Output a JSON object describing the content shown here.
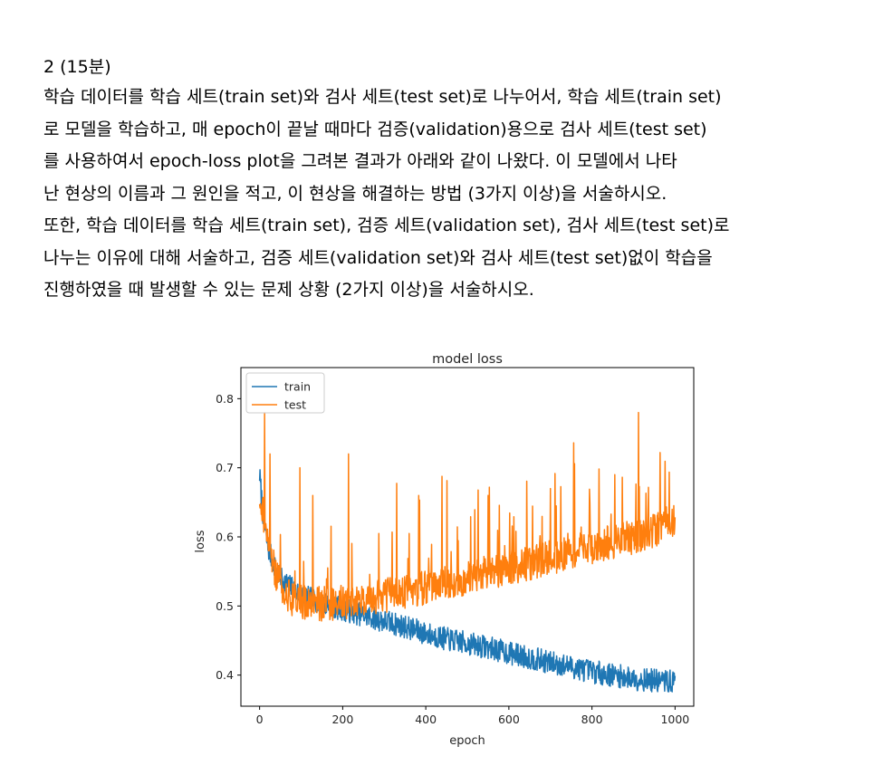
{
  "question": {
    "number": "2 (15분)",
    "lines": [
      "학습 데이터를 학습 세트(train set)와 검사 세트(test set)로 나누어서, 학습 세트(train set)",
      "로 모델을 학습하고, 매 epoch이 끝날 때마다 검증(validation)용으로 검사 세트(test set)",
      "를 사용하여서 epoch-loss plot을 그려본 결과가 아래와 같이 나왔다. 이 모델에서 나타",
      "난 현상의 이름과 그 원인을 적고, 이 현상을 해결하는 방법 (3가지 이상)을 서술하시오.",
      "또한, 학습 데이터를 학습 세트(train set), 검증 세트(validation set), 검사 세트(test set)로",
      "나누는 이유에 대해 서술하고, 검증 세트(validation set)와 검사 세트(test set)없이 학습을",
      "진행하였을 때 발생할 수 있는 문제 상황 (2가지 이상)을 서술하시오."
    ]
  },
  "chart_data": {
    "type": "line",
    "title": "model loss",
    "xlabel": "epoch",
    "ylabel": "loss",
    "xlim": [
      -45,
      1045
    ],
    "ylim": [
      0.355,
      0.845
    ],
    "xticks": [
      0,
      200,
      400,
      600,
      800,
      1000
    ],
    "yticks": [
      0.4,
      0.5,
      0.6,
      0.7,
      0.8
    ],
    "legend_position": "upper-left",
    "grid": false,
    "series": [
      {
        "name": "train",
        "color": "#1f77b4",
        "x": [
          0,
          10,
          20,
          40,
          60,
          80,
          100,
          150,
          200,
          250,
          300,
          350,
          400,
          450,
          500,
          550,
          600,
          650,
          700,
          750,
          800,
          850,
          900,
          950,
          1000
        ],
        "y": [
          0.69,
          0.62,
          0.585,
          0.55,
          0.535,
          0.525,
          0.515,
          0.505,
          0.495,
          0.487,
          0.478,
          0.47,
          0.46,
          0.452,
          0.446,
          0.44,
          0.432,
          0.425,
          0.418,
          0.412,
          0.405,
          0.4,
          0.395,
          0.392,
          0.39
        ]
      },
      {
        "name": "test",
        "color": "#ff7f0e",
        "x": [
          0,
          10,
          20,
          40,
          60,
          80,
          100,
          150,
          200,
          250,
          300,
          350,
          400,
          450,
          500,
          550,
          600,
          650,
          700,
          750,
          800,
          850,
          900,
          950,
          1000
        ],
        "y": [
          0.66,
          0.63,
          0.59,
          0.545,
          0.52,
          0.51,
          0.505,
          0.503,
          0.505,
          0.51,
          0.515,
          0.52,
          0.527,
          0.533,
          0.54,
          0.548,
          0.555,
          0.562,
          0.57,
          0.577,
          0.585,
          0.593,
          0.6,
          0.61,
          0.625
        ]
      }
    ]
  }
}
